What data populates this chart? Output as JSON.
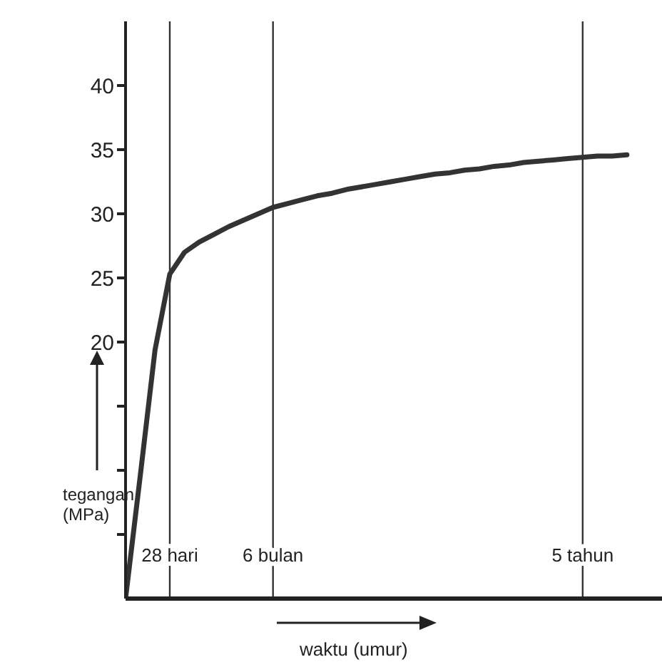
{
  "chart_data": {
    "type": "line",
    "xlabel": "waktu (umur)",
    "ylabel": "tegangan (MPa)",
    "categories": [
      null,
      null,
      null,
      "28 hari",
      null,
      null,
      null,
      null,
      null,
      null,
      "6 bulan",
      null,
      null,
      null,
      null,
      null,
      null,
      null,
      null,
      null,
      null,
      null,
      null,
      null,
      null,
      null,
      null,
      null,
      null,
      null,
      null,
      "5 tahun",
      null,
      null,
      null
    ],
    "series": [
      {
        "color": "#333333",
        "values": [
          0,
          9.6,
          19.4,
          25.3,
          27,
          27.8,
          28.4,
          29,
          29.5,
          30,
          30.5,
          30.8,
          31.1,
          31.4,
          31.6,
          31.9,
          32.1,
          32.3,
          32.5,
          32.7,
          32.9,
          33.1,
          33.2,
          33.4,
          33.5,
          33.7,
          33.8,
          34,
          34.1,
          34.2,
          34.3,
          34.4,
          34.5,
          34.5,
          34.6
        ]
      }
    ],
    "ylim": [
      0,
      45
    ],
    "yticks": [
      {
        "value": 5,
        "label": null
      },
      {
        "value": 10,
        "label": null
      },
      {
        "value": 15,
        "label": null
      },
      20,
      25,
      30,
      35,
      40
    ],
    "ref_lines": [
      {
        "axis": "x",
        "value": "28 hari",
        "color": "#333333"
      },
      {
        "axis": "x",
        "value": "6 bulan",
        "color": "#333333"
      },
      {
        "axis": "x",
        "value": "5 tahun",
        "color": "#333333"
      }
    ],
    "grid": false,
    "legend": false,
    "marker": "none",
    "line_style": "solid"
  }
}
